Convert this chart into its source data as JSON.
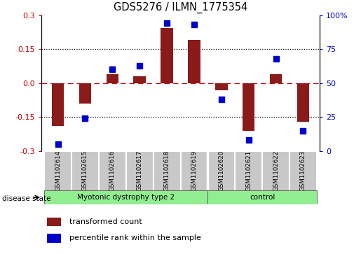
{
  "title": "GDS5276 / ILMN_1775354",
  "samples": [
    "GSM1102614",
    "GSM1102615",
    "GSM1102616",
    "GSM1102617",
    "GSM1102618",
    "GSM1102619",
    "GSM1102620",
    "GSM1102621",
    "GSM1102622",
    "GSM1102623"
  ],
  "transformed_counts": [
    -0.19,
    -0.09,
    0.04,
    0.03,
    0.245,
    0.19,
    -0.03,
    -0.21,
    0.04,
    -0.17
  ],
  "percentile_ranks": [
    5,
    24,
    60,
    63,
    94,
    93,
    38,
    8,
    68,
    15
  ],
  "group1_label": "Myotonic dystrophy type 2",
  "group1_indices": [
    0,
    1,
    2,
    3,
    4,
    5
  ],
  "group2_label": "control",
  "group2_indices": [
    6,
    7,
    8,
    9
  ],
  "group_color": "#90EE90",
  "sample_box_color": "#C8C8C8",
  "sample_box_edge_color": "#AAAAAA",
  "bar_color": "#8B1A1A",
  "dot_color": "#0000CC",
  "ylim_left": [
    -0.3,
    0.3
  ],
  "ylim_right": [
    0,
    100
  ],
  "yticks_left": [
    -0.3,
    -0.15,
    0.0,
    0.15,
    0.3
  ],
  "yticks_right": [
    0,
    25,
    50,
    75,
    100
  ],
  "left_tick_color": "#CC0000",
  "right_tick_color": "#0000CC",
  "legend_items": [
    "transformed count",
    "percentile rank within the sample"
  ],
  "legend_colors": [
    "#8B1A1A",
    "#0000CC"
  ],
  "disease_state_label": "disease state",
  "bar_width": 0.45,
  "dot_size": 28
}
